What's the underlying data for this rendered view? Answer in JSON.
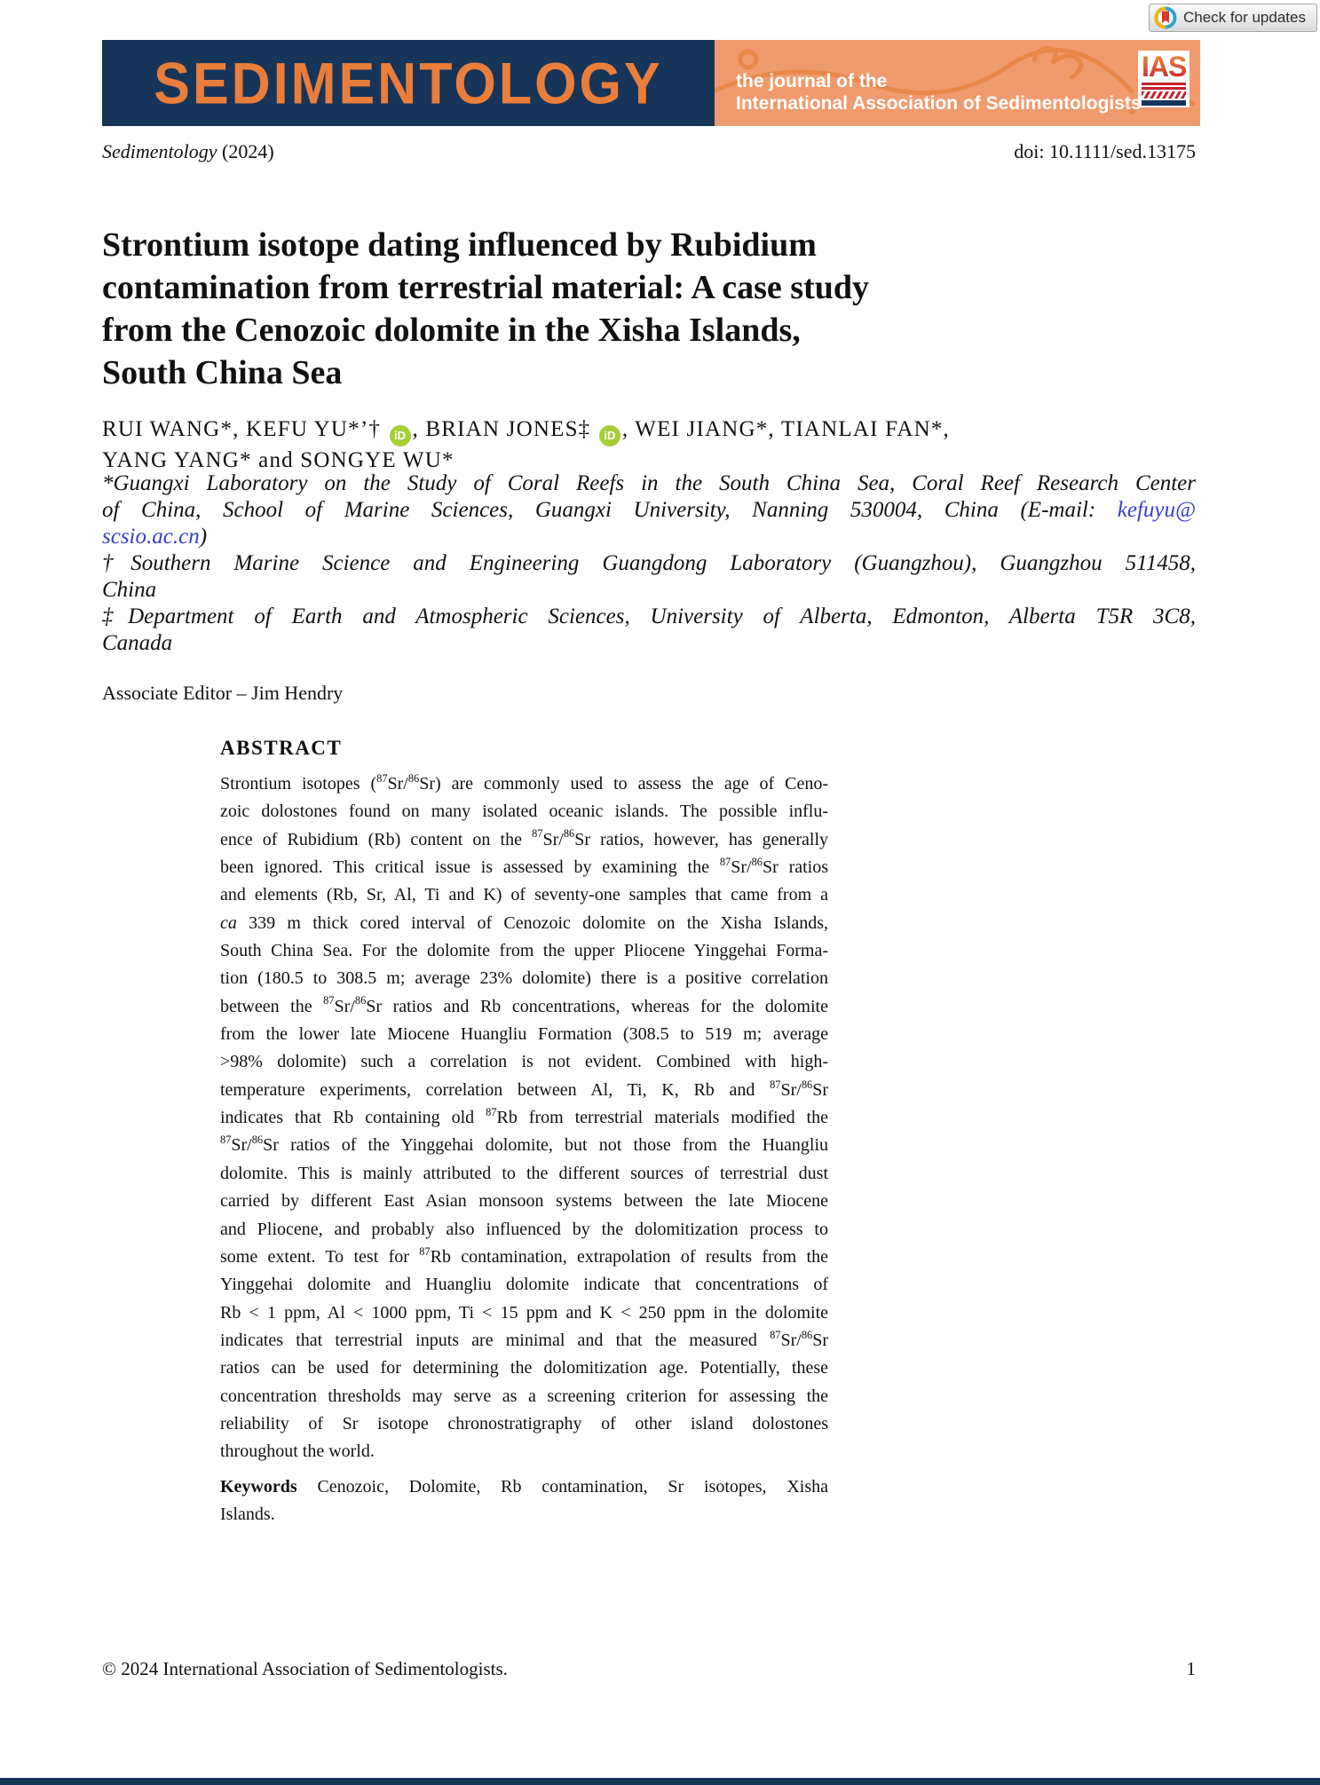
{
  "badge": {
    "label": "Check for updates"
  },
  "masthead": {
    "journal_name": "SEDIMENTOLOGY",
    "tagline": [
      "the journal of the",
      "International Association of Sedimentologists"
    ],
    "ias": "IAS",
    "colors": {
      "navy": "#173459",
      "logo_orange": "#e97e3b",
      "banner_orange": "#f09b6d"
    }
  },
  "meta": {
    "journal": "Sedimentology",
    "year": " (2024)",
    "doi": "doi: 10.1111/sed.13175"
  },
  "article": {
    "title_lines": [
      {
        "segs": [
          {
            "t": "Strontium isotope dating influenced by Rubidium"
          }
        ]
      },
      {
        "segs": [
          {
            "t": "contamination from terrestrial material: A case study"
          }
        ]
      },
      {
        "segs": [
          {
            "t": "from the Cenozoic dolomite in the Xisha Islands,"
          }
        ]
      },
      {
        "segs": [
          {
            "t": "South China Sea"
          }
        ]
      }
    ],
    "author_line1": [
      {
        "t": "RUI WANG*, KEFU YU*’† "
      },
      {
        "orcid": "iD"
      },
      {
        "t": ", BRIAN JONES‡ "
      },
      {
        "orcid": "iD"
      },
      {
        "t": ", WEI JIANG*, TIANLAI FAN*,"
      }
    ],
    "author_line2": [
      {
        "t": "YANG YANG* and SONGYE WU*"
      }
    ],
    "affiliation_lines": [
      {
        "just": true,
        "segs": [
          {
            "t": "*Guangxi Laboratory on the Study of Coral Reefs in the South China Sea, Coral Reef Research Center"
          }
        ]
      },
      {
        "just": true,
        "segs": [
          {
            "t": "of China, School of Marine Sciences, Guangxi University, Nanning 530004, China (E-mail: "
          },
          {
            "link": "kefuyu@"
          }
        ]
      },
      {
        "just": false,
        "segs": [
          {
            "link": "scsio.ac.cn"
          },
          {
            "t": ")"
          }
        ]
      },
      {
        "just": true,
        "segs": [
          {
            "t": "†Southern Marine Science and Engineering Guangdong Laboratory (Guangzhou), Guangzhou 511458,"
          }
        ]
      },
      {
        "just": false,
        "segs": [
          {
            "t": "China"
          }
        ]
      },
      {
        "just": true,
        "segs": [
          {
            "t": "‡Department of Earth and Atmospheric Sciences, University of Alberta, Edmonton, Alberta T5R 3C8,"
          }
        ]
      },
      {
        "just": false,
        "segs": [
          {
            "t": "Canada"
          }
        ]
      }
    ],
    "associate_editor": "Associate Editor – Jim Hendry",
    "abstract_heading": "ABSTRACT",
    "abstract_lines": [
      {
        "just": true,
        "segs": [
          {
            "t": "Strontium isotopes ("
          },
          {
            "sup": "87"
          },
          {
            "t": "Sr/"
          },
          {
            "sup": "86"
          },
          {
            "t": "Sr) are commonly used to assess the age of Ceno-"
          }
        ]
      },
      {
        "just": true,
        "segs": [
          {
            "t": "zoic dolostones found on many isolated oceanic islands. The possible influ-"
          }
        ]
      },
      {
        "just": true,
        "segs": [
          {
            "t": "ence of Rubidium (Rb) content on the "
          },
          {
            "sup": "87"
          },
          {
            "t": "Sr/"
          },
          {
            "sup": "86"
          },
          {
            "t": "Sr ratios, however, has generally"
          }
        ]
      },
      {
        "just": true,
        "segs": [
          {
            "t": "been ignored. This critical issue is assessed by examining the "
          },
          {
            "sup": "87"
          },
          {
            "t": "Sr/"
          },
          {
            "sup": "86"
          },
          {
            "t": "Sr ratios"
          }
        ]
      },
      {
        "just": true,
        "segs": [
          {
            "t": "and elements (Rb, Sr, Al, Ti and K) of seventy-one samples that came from a"
          }
        ]
      },
      {
        "just": true,
        "segs": [
          {
            "i": "ca"
          },
          {
            "t": " 339 m thick cored interval of Cenozoic dolomite on the Xisha Islands,"
          }
        ]
      },
      {
        "just": true,
        "segs": [
          {
            "t": "South China Sea. For the dolomite from the upper Pliocene Yinggehai Forma-"
          }
        ]
      },
      {
        "just": true,
        "segs": [
          {
            "t": "tion (180.5 to 308.5 m; average 23% dolomite) there is a positive correlation"
          }
        ]
      },
      {
        "just": true,
        "segs": [
          {
            "t": "between the "
          },
          {
            "sup": "87"
          },
          {
            "t": "Sr/"
          },
          {
            "sup": "86"
          },
          {
            "t": "Sr ratios and Rb concentrations, whereas for the dolomite"
          }
        ]
      },
      {
        "just": true,
        "segs": [
          {
            "t": "from the lower late Miocene Huangliu Formation (308.5 to 519 m; average"
          }
        ]
      },
      {
        "just": true,
        "segs": [
          {
            "t": ">98% dolomite) such a correlation is not evident. Combined with high-"
          }
        ]
      },
      {
        "just": true,
        "segs": [
          {
            "t": "temperature experiments, correlation between Al, Ti, K, Rb and "
          },
          {
            "sup": "87"
          },
          {
            "t": "Sr/"
          },
          {
            "sup": "86"
          },
          {
            "t": "Sr"
          }
        ]
      },
      {
        "just": true,
        "segs": [
          {
            "t": "indicates that Rb containing old "
          },
          {
            "sup": "87"
          },
          {
            "t": "Rb from terrestrial materials modified the"
          }
        ]
      },
      {
        "just": true,
        "segs": [
          {
            "sup": "87"
          },
          {
            "t": "Sr/"
          },
          {
            "sup": "86"
          },
          {
            "t": "Sr ratios of the Yinggehai dolomite, but not those from the Huangliu"
          }
        ]
      },
      {
        "just": true,
        "segs": [
          {
            "t": "dolomite. This is mainly attributed to the different sources of terrestrial dust"
          }
        ]
      },
      {
        "just": true,
        "segs": [
          {
            "t": "carried by different East Asian monsoon systems between the late Miocene"
          }
        ]
      },
      {
        "just": true,
        "segs": [
          {
            "t": "and Pliocene, and probably also influenced by the dolomitization process to"
          }
        ]
      },
      {
        "just": true,
        "segs": [
          {
            "t": "some extent. To test for "
          },
          {
            "sup": "87"
          },
          {
            "t": "Rb contamination, extrapolation of results from the"
          }
        ]
      },
      {
        "just": true,
        "segs": [
          {
            "t": "Yinggehai dolomite and Huangliu dolomite indicate that concentrations of"
          }
        ]
      },
      {
        "just": true,
        "segs": [
          {
            "t": "Rb < 1 ppm, Al < 1000 ppm, Ti < 15 ppm and K < 250 ppm in the dolomite"
          }
        ]
      },
      {
        "just": true,
        "segs": [
          {
            "t": "indicates that terrestrial inputs are minimal and that the measured "
          },
          {
            "sup": "87"
          },
          {
            "t": "Sr/"
          },
          {
            "sup": "86"
          },
          {
            "t": "Sr"
          }
        ]
      },
      {
        "just": true,
        "segs": [
          {
            "t": "ratios can be used for determining the dolomitization age. Potentially, these"
          }
        ]
      },
      {
        "just": true,
        "segs": [
          {
            "t": "concentration thresholds may serve as a screening criterion for assessing the"
          }
        ]
      },
      {
        "just": true,
        "segs": [
          {
            "t": "reliability of Sr isotope chronostratigraphy of other island dolostones"
          }
        ]
      },
      {
        "just": false,
        "segs": [
          {
            "t": "throughout the world."
          }
        ]
      }
    ],
    "keyword_lines": [
      {
        "just": true,
        "segs": [
          {
            "b": "Keywords"
          },
          {
            "t": " Cenozoic, Dolomite, Rb contamination, Sr isotopes, Xisha"
          }
        ]
      },
      {
        "just": false,
        "segs": [
          {
            "t": "Islands."
          }
        ]
      }
    ]
  },
  "footer": {
    "copyright": "© 2024 International Association of Sedimentologists.",
    "page": "1"
  }
}
